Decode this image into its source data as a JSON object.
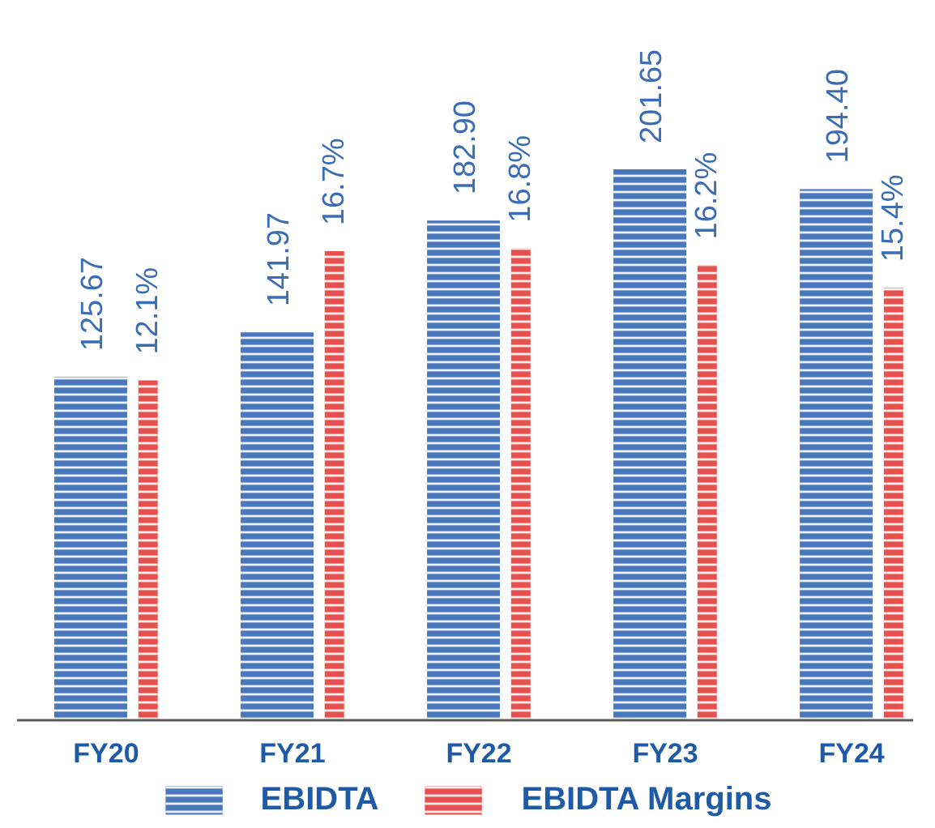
{
  "chart_data": {
    "type": "bar",
    "categories": [
      "FY20",
      "FY21",
      "FY22",
      "FY23",
      "FY24"
    ],
    "series": [
      {
        "name": "EBIDTA",
        "color": "#4a76bb",
        "values": [
          125.67,
          141.97,
          182.9,
          201.65,
          194.4
        ],
        "value_labels": [
          "125.67",
          "141.97",
          "182.90",
          "201.65",
          "194.40"
        ]
      },
      {
        "name": "EBIDTA Margins",
        "color": "#e6514f",
        "values": [
          12.1,
          16.7,
          16.8,
          16.2,
          15.4
        ],
        "value_labels": [
          "12.1%",
          "16.7%",
          "16.8%",
          "16.2%",
          "15.4%"
        ],
        "axis": "y2"
      }
    ],
    "tick_labels": "x",
    "legend": "bottom"
  }
}
